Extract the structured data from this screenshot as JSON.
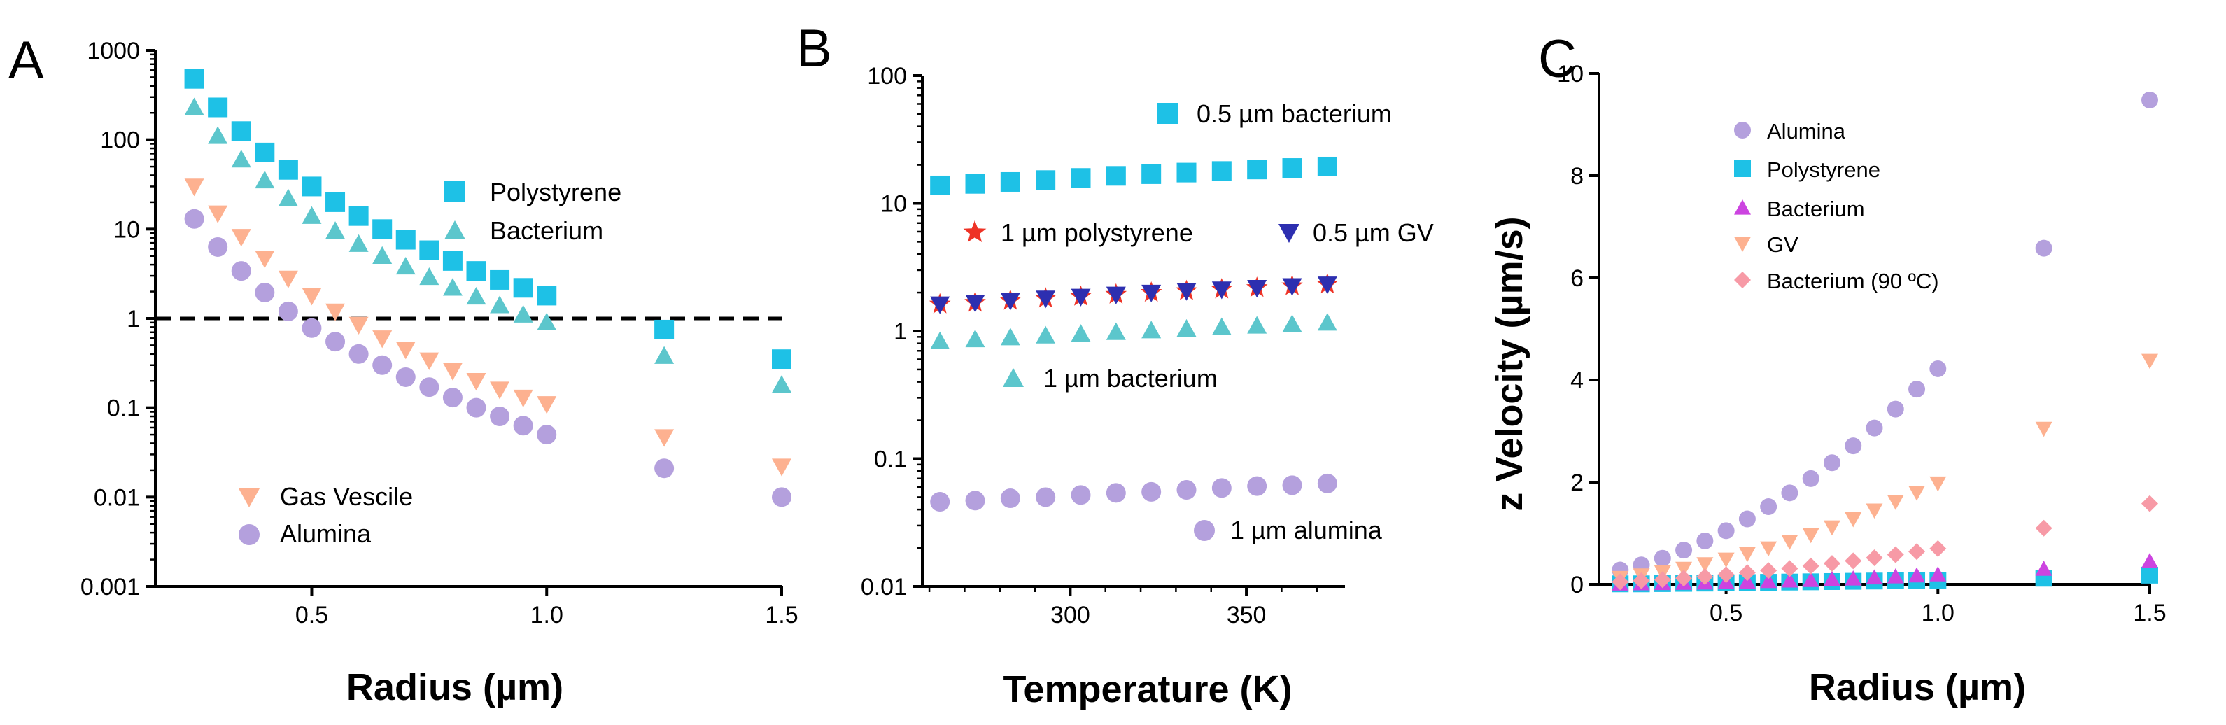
{
  "colors": {
    "polystyrene": "#1ec1e6",
    "bacterium": "#5cc6cc",
    "gas_vesicle": "#fdb190",
    "alumina": "#b4a0dd",
    "bacterium_90": "#f79aa6",
    "bacterium_c": "#cc44e0",
    "polystyrene_b_star": "#ee3326",
    "gv_b": "#2d2fb0"
  },
  "chart_data": [
    {
      "panel": "A",
      "type": "scatter",
      "yscale": "log",
      "xlabel": "Radius (µm)",
      "ylabel": "",
      "xlim": [
        0.2,
        1.5
      ],
      "ylim": [
        0.001,
        1000
      ],
      "xticks": [
        0.5,
        1.0,
        1.5
      ],
      "xtick_labels": [
        "0.5",
        "1.0",
        "1.5"
      ],
      "yticks": [
        0.001,
        0.01,
        0.1,
        1,
        10,
        100,
        1000
      ],
      "ytick_labels": [
        "0.001",
        "0.01",
        "0.1",
        "1",
        "10",
        "100",
        "1000"
      ],
      "reference_line": {
        "y": 1,
        "style": "dashed"
      },
      "x": [
        0.25,
        0.3,
        0.35,
        0.4,
        0.45,
        0.5,
        0.55,
        0.6,
        0.65,
        0.7,
        0.75,
        0.8,
        0.85,
        0.9,
        0.95,
        1.0,
        1.25,
        1.5
      ],
      "series": [
        {
          "name": "Polystyrene",
          "marker": "square",
          "color_key": "polystyrene",
          "values": [
            480,
            230,
            125,
            72,
            46,
            30,
            20,
            14,
            10,
            7.6,
            5.8,
            4.4,
            3.4,
            2.7,
            2.2,
            1.8,
            0.75,
            0.35
          ]
        },
        {
          "name": "Bacterium",
          "marker": "triangle-up",
          "color_key": "bacterium",
          "values": [
            230,
            110,
            60,
            35,
            22,
            14,
            9.5,
            6.8,
            5.0,
            3.8,
            2.9,
            2.2,
            1.75,
            1.4,
            1.1,
            0.9,
            0.38,
            0.18
          ]
        },
        {
          "name": "Gas Vescile",
          "marker": "triangle-down",
          "color_key": "gas_vesicle",
          "values": [
            30,
            15,
            8.2,
            4.7,
            2.8,
            1.8,
            1.2,
            0.85,
            0.6,
            0.45,
            0.34,
            0.26,
            0.2,
            0.16,
            0.13,
            0.11,
            0.047,
            0.022
          ]
        },
        {
          "name": "Alumina",
          "marker": "circle",
          "color_key": "alumina",
          "values": [
            13,
            6.3,
            3.4,
            1.95,
            1.2,
            0.78,
            0.55,
            0.4,
            0.3,
            0.22,
            0.17,
            0.13,
            0.1,
            0.08,
            0.063,
            0.05,
            0.021,
            0.01
          ]
        }
      ]
    },
    {
      "panel": "B",
      "type": "scatter",
      "yscale": "log",
      "xlabel": "Temperature (K)",
      "ylabel": "",
      "xlim": [
        258,
        378
      ],
      "ylim": [
        0.01,
        100
      ],
      "xticks": [
        300,
        350
      ],
      "xtick_labels": [
        "300",
        "350"
      ],
      "yticks": [
        0.01,
        0.1,
        1,
        10,
        100
      ],
      "ytick_labels": [
        "0.01",
        "0.1",
        "1",
        "10",
        "100"
      ],
      "x": [
        263,
        273,
        283,
        293,
        303,
        313,
        323,
        333,
        343,
        353,
        363,
        373
      ],
      "series": [
        {
          "name": "0.5 µm bacterium",
          "marker": "square",
          "color_key": "polystyrene",
          "values": [
            13.8,
            14.2,
            14.7,
            15.2,
            15.8,
            16.4,
            16.9,
            17.4,
            17.9,
            18.4,
            18.9,
            19.4
          ]
        },
        {
          "name": "1 µm polystyrene",
          "marker": "star",
          "color_key": "polystyrene_b_star",
          "values": [
            1.62,
            1.67,
            1.73,
            1.8,
            1.86,
            1.93,
            2.0,
            2.06,
            2.12,
            2.18,
            2.25,
            2.32
          ]
        },
        {
          "name": "0.5 µm GV",
          "marker": "triangle-down",
          "color_key": "gv_b",
          "values": [
            1.62,
            1.67,
            1.73,
            1.8,
            1.86,
            1.93,
            2.0,
            2.06,
            2.12,
            2.18,
            2.25,
            2.32
          ]
        },
        {
          "name": "1 µm bacterium",
          "marker": "triangle-up",
          "color_key": "bacterium",
          "values": [
            0.83,
            0.86,
            0.89,
            0.92,
            0.95,
            0.98,
            1.01,
            1.04,
            1.07,
            1.1,
            1.13,
            1.16
          ]
        },
        {
          "name": "1 µm alumina",
          "marker": "circle",
          "color_key": "alumina",
          "values": [
            0.046,
            0.047,
            0.049,
            0.05,
            0.052,
            0.054,
            0.055,
            0.057,
            0.059,
            0.061,
            0.062,
            0.064
          ]
        }
      ]
    },
    {
      "panel": "C",
      "type": "scatter",
      "yscale": "linear",
      "xlabel": "Radius (µm)",
      "ylabel": "z Velocity (µm/s)",
      "xlim": [
        0.2,
        1.5
      ],
      "ylim": [
        0,
        10
      ],
      "xticks": [
        0.5,
        1.0,
        1.5
      ],
      "xtick_labels": [
        "0.5",
        "1.0",
        "1.5"
      ],
      "yticks": [
        0,
        2,
        4,
        6,
        8,
        10
      ],
      "ytick_labels": [
        "0",
        "2",
        "4",
        "6",
        "8",
        "10"
      ],
      "x": [
        0.25,
        0.3,
        0.35,
        0.4,
        0.45,
        0.5,
        0.55,
        0.6,
        0.65,
        0.7,
        0.75,
        0.8,
        0.85,
        0.9,
        0.95,
        1.0,
        1.25,
        1.5
      ],
      "series": [
        {
          "name": "Alumina",
          "marker": "circle",
          "color_key": "alumina",
          "values": [
            0.28,
            0.38,
            0.51,
            0.67,
            0.85,
            1.05,
            1.28,
            1.52,
            1.79,
            2.07,
            2.38,
            2.71,
            3.06,
            3.43,
            3.82,
            4.22,
            6.58,
            9.48
          ]
        },
        {
          "name": "Polystyrene",
          "marker": "square",
          "color_key": "polystyrene",
          "values": [
            0.01,
            0.01,
            0.015,
            0.02,
            0.025,
            0.03,
            0.035,
            0.04,
            0.045,
            0.05,
            0.055,
            0.06,
            0.065,
            0.07,
            0.075,
            0.08,
            0.12,
            0.18
          ]
        },
        {
          "name": "Bacterium",
          "marker": "triangle-up",
          "color_key": "bacterium_c",
          "values": [
            0.01,
            0.015,
            0.02,
            0.025,
            0.03,
            0.04,
            0.05,
            0.06,
            0.07,
            0.08,
            0.1,
            0.11,
            0.13,
            0.15,
            0.17,
            0.19,
            0.3,
            0.45
          ]
        },
        {
          "name": "GV",
          "marker": "triangle-down",
          "color_key": "gas_vesicle",
          "values": [
            0.13,
            0.18,
            0.24,
            0.31,
            0.4,
            0.49,
            0.6,
            0.71,
            0.84,
            0.97,
            1.12,
            1.28,
            1.45,
            1.62,
            1.8,
            1.98,
            3.05,
            4.38
          ]
        },
        {
          "name": "Bacterium (90 ºC)",
          "marker": "diamond",
          "color_key": "bacterium_90",
          "values": [
            0.05,
            0.07,
            0.09,
            0.12,
            0.15,
            0.19,
            0.23,
            0.27,
            0.31,
            0.36,
            0.41,
            0.46,
            0.52,
            0.58,
            0.64,
            0.7,
            1.1,
            1.58
          ]
        }
      ]
    }
  ]
}
